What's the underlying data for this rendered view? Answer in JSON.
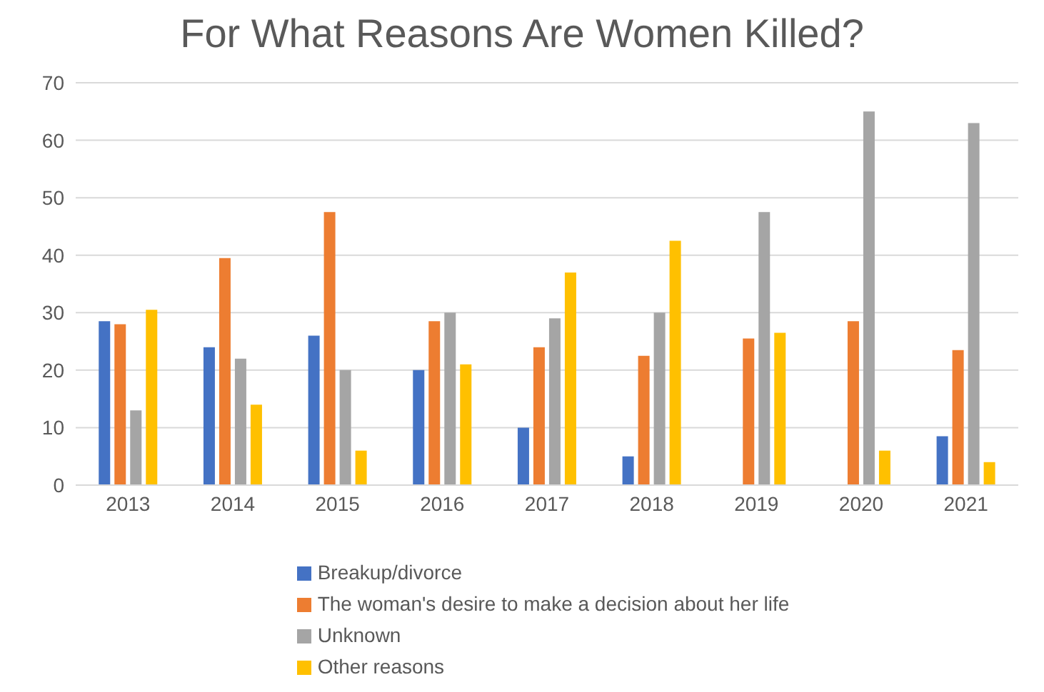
{
  "chart_data": {
    "type": "bar",
    "title": "For What Reasons Are Women Killed?",
    "categories": [
      "2013",
      "2014",
      "2015",
      "2016",
      "2017",
      "2018",
      "2019",
      "2020",
      "2021"
    ],
    "series": [
      {
        "name": "Breakup/divorce",
        "color": "#4472c4",
        "values": [
          28.5,
          24,
          26,
          20,
          10,
          5,
          0,
          0,
          8.5
        ]
      },
      {
        "name": "The woman's desire to make a decision about her life",
        "color": "#ed7d31",
        "values": [
          28,
          39.5,
          47.5,
          28.5,
          24,
          22.5,
          25.5,
          28.5,
          23.5
        ]
      },
      {
        "name": "Unknown",
        "color": "#a5a5a5",
        "values": [
          13,
          22,
          20,
          30,
          29,
          30,
          47.5,
          65,
          63
        ]
      },
      {
        "name": "Other reasons",
        "color": "#ffc000",
        "values": [
          30.5,
          14,
          6,
          21,
          37,
          42.5,
          26.5,
          6,
          4
        ]
      }
    ],
    "ylim": [
      0,
      70
    ],
    "yticks": [
      0,
      10,
      20,
      30,
      40,
      50,
      60,
      70
    ],
    "grid": "y",
    "legend": "bottom"
  }
}
